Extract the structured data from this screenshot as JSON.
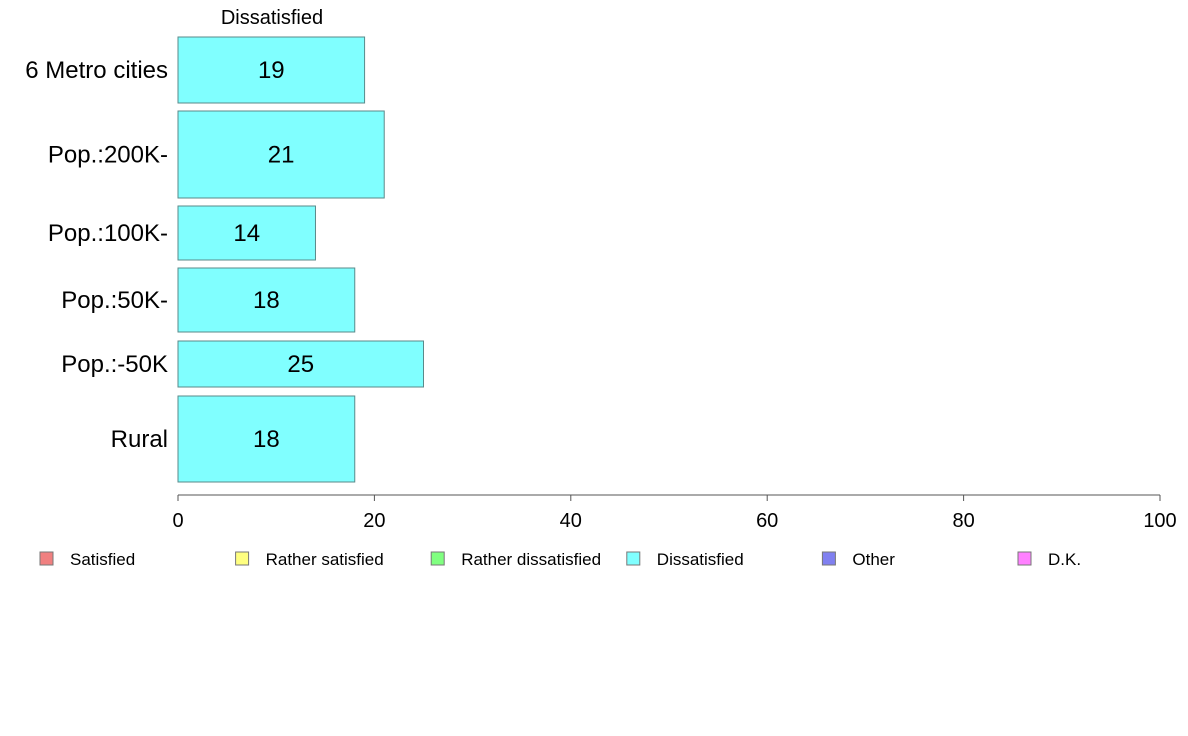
{
  "chart_data": {
    "type": "bar",
    "orientation": "horizontal",
    "title": "",
    "panel_title": "Dissatisfied",
    "xlabel": "",
    "ylabel": "",
    "xlim": [
      0,
      100
    ],
    "x_ticks": [
      0,
      20,
      40,
      60,
      80,
      100
    ],
    "categories": [
      "6 Metro cities",
      "Pop.:200K-",
      "Pop.:100K-",
      "Pop.:50K-",
      "Pop.:-50K",
      "Rural"
    ],
    "series": [
      {
        "name": "Dissatisfied",
        "values": [
          19,
          21,
          14,
          18,
          25,
          18
        ],
        "color": "#80ffff"
      }
    ],
    "legend": [
      {
        "label": "Satisfied",
        "color": "#f08080"
      },
      {
        "label": "Rather satisfied",
        "color": "#ffff80"
      },
      {
        "label": "Rather dissatisfied",
        "color": "#80ff80"
      },
      {
        "label": "Dissatisfied",
        "color": "#80ffff"
      },
      {
        "label": "Other",
        "color": "#8080f0"
      },
      {
        "label": "D.K.",
        "color": "#ff80ff"
      }
    ],
    "legend_position": "bottom",
    "grid": false
  }
}
